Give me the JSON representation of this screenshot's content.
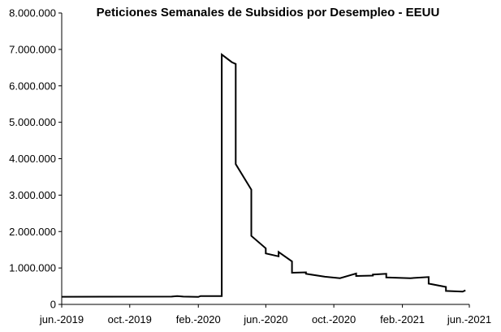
{
  "chart_data": {
    "type": "line",
    "title": "Peticiones Semanales de Subsidios por Desempleo - EEUU",
    "xlabel": "",
    "ylabel": "",
    "ylim": [
      0,
      8000000
    ],
    "y_ticks": [
      {
        "value": 0,
        "label": "0"
      },
      {
        "value": 1000000,
        "label": "1.000.000"
      },
      {
        "value": 2000000,
        "label": "2.000.000"
      },
      {
        "value": 3000000,
        "label": "3.000.000"
      },
      {
        "value": 4000000,
        "label": "4.000.000"
      },
      {
        "value": 5000000,
        "label": "5.000.000"
      },
      {
        "value": 6000000,
        "label": "6.000.000"
      },
      {
        "value": 7000000,
        "label": "7.000.000"
      },
      {
        "value": 8000000,
        "label": "8.000.000"
      }
    ],
    "xlim": [
      "2019-06",
      "2021-06"
    ],
    "x_ticks": [
      {
        "value": "2019-06",
        "label": "jun.-2019"
      },
      {
        "value": "2019-10",
        "label": "oct.-2019"
      },
      {
        "value": "2020-02",
        "label": "feb.-2020"
      },
      {
        "value": "2020-06",
        "label": "jun.-2020"
      },
      {
        "value": "2020-10",
        "label": "oct.-2020"
      },
      {
        "value": "2021-02",
        "label": "feb.-2021"
      },
      {
        "value": "2021-06",
        "label": "jun.-2021"
      }
    ],
    "grid": false,
    "legend": "none",
    "series": [
      {
        "color": "#000000",
        "points": [
          {
            "x": "2019-06-01",
            "y": 210000
          },
          {
            "x": "2019-12-15",
            "y": 215000
          },
          {
            "x": "2019-12-25",
            "y": 230000
          },
          {
            "x": "2020-01-05",
            "y": 215000
          },
          {
            "x": "2020-02-01",
            "y": 205000
          },
          {
            "x": "2020-02-05",
            "y": 230000
          },
          {
            "x": "2020-03-14",
            "y": 230000
          },
          {
            "x": "2020-03-14",
            "y": 6860000
          },
          {
            "x": "2020-04-01",
            "y": 6650000
          },
          {
            "x": "2020-04-08",
            "y": 6600000
          },
          {
            "x": "2020-04-08",
            "y": 3850000
          },
          {
            "x": "2020-05-06",
            "y": 3150000
          },
          {
            "x": "2020-05-06",
            "y": 1880000
          },
          {
            "x": "2020-06-01",
            "y": 1540000
          },
          {
            "x": "2020-06-01",
            "y": 1400000
          },
          {
            "x": "2020-06-24",
            "y": 1320000
          },
          {
            "x": "2020-06-24",
            "y": 1440000
          },
          {
            "x": "2020-07-18",
            "y": 1180000
          },
          {
            "x": "2020-07-18",
            "y": 870000
          },
          {
            "x": "2020-08-12",
            "y": 880000
          },
          {
            "x": "2020-08-12",
            "y": 840000
          },
          {
            "x": "2020-09-15",
            "y": 760000
          },
          {
            "x": "2020-10-12",
            "y": 720000
          },
          {
            "x": "2020-11-10",
            "y": 850000
          },
          {
            "x": "2020-11-10",
            "y": 780000
          },
          {
            "x": "2020-12-10",
            "y": 790000
          },
          {
            "x": "2020-12-10",
            "y": 820000
          },
          {
            "x": "2021-01-03",
            "y": 840000
          },
          {
            "x": "2021-01-03",
            "y": 740000
          },
          {
            "x": "2021-02-15",
            "y": 720000
          },
          {
            "x": "2021-03-20",
            "y": 750000
          },
          {
            "x": "2021-03-20",
            "y": 570000
          },
          {
            "x": "2021-04-20",
            "y": 480000
          },
          {
            "x": "2021-04-20",
            "y": 370000
          },
          {
            "x": "2021-05-20",
            "y": 350000
          },
          {
            "x": "2021-05-25",
            "y": 385000
          }
        ]
      }
    ]
  }
}
